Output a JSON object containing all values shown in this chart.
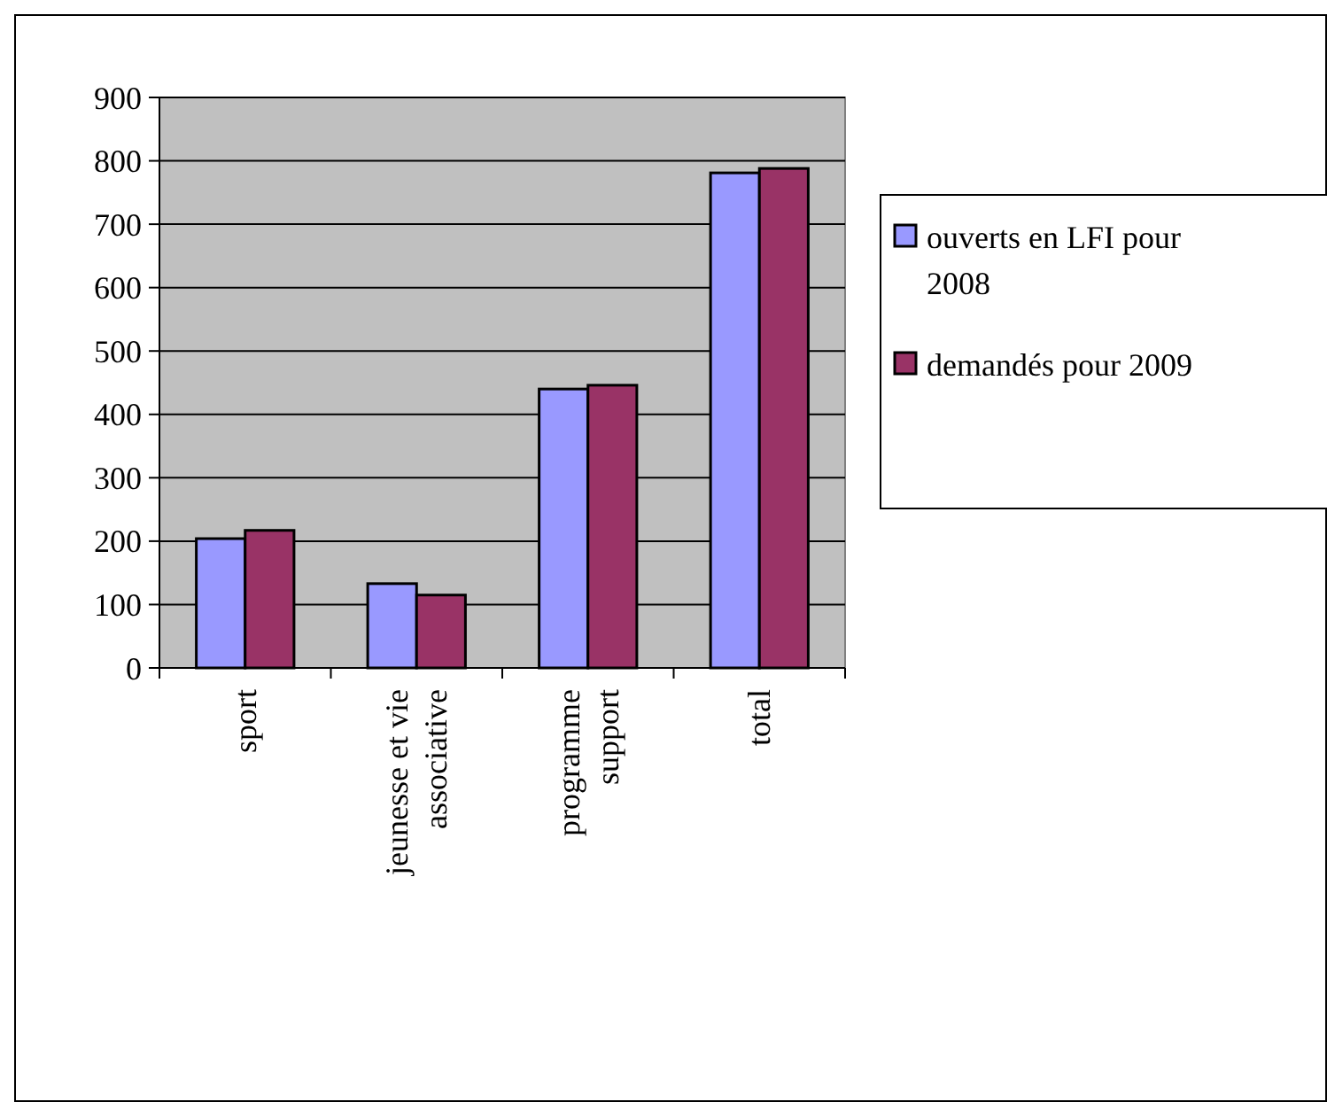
{
  "chart_data": {
    "type": "bar",
    "categories": [
      "sport",
      "jeunesse et vie associative",
      "programme support",
      "total"
    ],
    "series": [
      {
        "name": "ouverts en LFI pour 2008",
        "color": "#9999ff",
        "values": [
          204,
          133,
          440,
          781
        ]
      },
      {
        "name": "demandés pour 2009",
        "color": "#993366",
        "values": [
          217,
          115,
          446,
          788
        ]
      }
    ],
    "ylim": [
      0,
      900
    ],
    "yticks": [
      0,
      100,
      200,
      300,
      400,
      500,
      600,
      700,
      800,
      900
    ],
    "grid": "y",
    "legend": "right"
  }
}
